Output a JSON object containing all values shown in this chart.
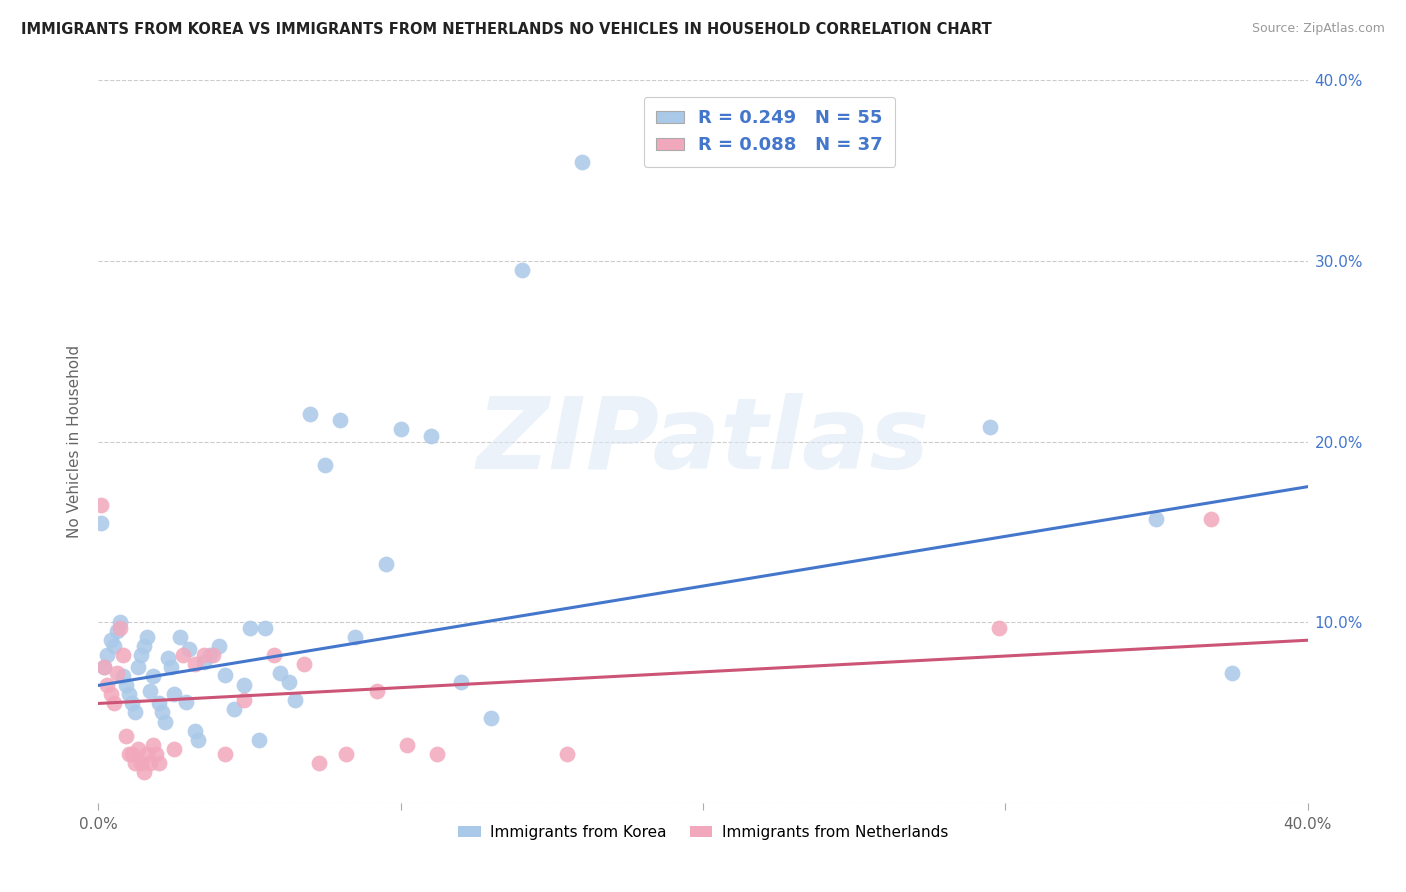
{
  "title": "IMMIGRANTS FROM KOREA VS IMMIGRANTS FROM NETHERLANDS NO VEHICLES IN HOUSEHOLD CORRELATION CHART",
  "source": "Source: ZipAtlas.com",
  "ylabel": "No Vehicles in Household",
  "watermark": "ZIPatlas",
  "xlim": [
    0.0,
    0.4
  ],
  "ylim": [
    0.0,
    0.4
  ],
  "xticks": [
    0.0,
    0.1,
    0.2,
    0.3,
    0.4
  ],
  "yticks": [
    0.0,
    0.1,
    0.2,
    0.3,
    0.4
  ],
  "xtick_labels": [
    "0.0%",
    "",
    "",
    "",
    "40.0%"
  ],
  "right_ytick_labels": [
    "",
    "10.0%",
    "20.0%",
    "30.0%",
    "40.0%"
  ],
  "grid_color": "#cccccc",
  "background_color": "#ffffff",
  "korea_color": "#aac8e8",
  "netherlands_color": "#f2a8bc",
  "korea_line_color": "#4477cc",
  "netherlands_line_color": "#cc5577",
  "korea_R": 0.249,
  "korea_N": 55,
  "netherlands_R": 0.088,
  "netherlands_N": 37,
  "legend_label_korea": "Immigrants from Korea",
  "legend_label_netherlands": "Immigrants from Netherlands",
  "korea_x": [
    0.001,
    0.002,
    0.003,
    0.004,
    0.005,
    0.006,
    0.007,
    0.008,
    0.009,
    0.01,
    0.011,
    0.012,
    0.013,
    0.014,
    0.015,
    0.016,
    0.017,
    0.018,
    0.02,
    0.021,
    0.022,
    0.023,
    0.024,
    0.025,
    0.027,
    0.029,
    0.03,
    0.032,
    0.033,
    0.035,
    0.037,
    0.04,
    0.042,
    0.045,
    0.048,
    0.05,
    0.053,
    0.055,
    0.06,
    0.063,
    0.065,
    0.07,
    0.075,
    0.08,
    0.085,
    0.095,
    0.1,
    0.11,
    0.12,
    0.13,
    0.14,
    0.16,
    0.295,
    0.35,
    0.375
  ],
  "korea_y": [
    0.155,
    0.075,
    0.082,
    0.09,
    0.087,
    0.095,
    0.1,
    0.07,
    0.065,
    0.06,
    0.055,
    0.05,
    0.075,
    0.082,
    0.087,
    0.092,
    0.062,
    0.07,
    0.055,
    0.05,
    0.045,
    0.08,
    0.075,
    0.06,
    0.092,
    0.056,
    0.085,
    0.04,
    0.035,
    0.078,
    0.082,
    0.087,
    0.071,
    0.052,
    0.065,
    0.097,
    0.035,
    0.097,
    0.072,
    0.067,
    0.057,
    0.215,
    0.187,
    0.212,
    0.092,
    0.132,
    0.207,
    0.203,
    0.067,
    0.047,
    0.295,
    0.355,
    0.208,
    0.157,
    0.072
  ],
  "netherlands_x": [
    0.001,
    0.002,
    0.003,
    0.004,
    0.005,
    0.006,
    0.007,
    0.008,
    0.009,
    0.01,
    0.011,
    0.012,
    0.013,
    0.014,
    0.015,
    0.016,
    0.017,
    0.018,
    0.019,
    0.02,
    0.025,
    0.028,
    0.032,
    0.035,
    0.038,
    0.042,
    0.048,
    0.058,
    0.068,
    0.073,
    0.082,
    0.092,
    0.102,
    0.112,
    0.155,
    0.298,
    0.368
  ],
  "netherlands_y": [
    0.165,
    0.075,
    0.065,
    0.06,
    0.055,
    0.072,
    0.097,
    0.082,
    0.037,
    0.027,
    0.027,
    0.022,
    0.03,
    0.022,
    0.017,
    0.027,
    0.022,
    0.032,
    0.027,
    0.022,
    0.03,
    0.082,
    0.077,
    0.082,
    0.082,
    0.027,
    0.057,
    0.082,
    0.077,
    0.022,
    0.027,
    0.062,
    0.032,
    0.027,
    0.027,
    0.097,
    0.157
  ]
}
